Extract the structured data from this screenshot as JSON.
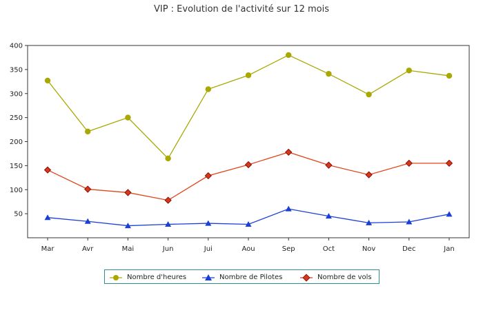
{
  "chart_data": {
    "type": "line",
    "title": "VIP : Evolution de l'activité sur 12 mois",
    "categories": [
      "Mar",
      "Avr",
      "Mai",
      "Jun",
      "Jui",
      "Aou",
      "Sep",
      "Oct",
      "Nov",
      "Dec",
      "Jan"
    ],
    "ylim": [
      0,
      400
    ],
    "yticks": [
      50,
      100,
      150,
      200,
      250,
      300,
      350,
      400
    ],
    "grid": true,
    "legend_position": "bottom",
    "series": [
      {
        "name": "Nombre d'heures",
        "color": "#a8a800",
        "marker": "diamond-circle",
        "values": [
          327,
          221,
          250,
          165,
          309,
          338,
          380,
          341,
          298,
          348,
          337
        ]
      },
      {
        "name": "Nombre de Pilotes",
        "color": "#1a3fd6",
        "marker": "triangle",
        "values": [
          42,
          34,
          25,
          28,
          30,
          28,
          60,
          45,
          31,
          33,
          49
        ]
      },
      {
        "name": "Nombre de vols",
        "color": "#e0451a",
        "marker": "diamond-red",
        "values": [
          141,
          101,
          94,
          78,
          129,
          152,
          178,
          151,
          131,
          155,
          155
        ]
      }
    ]
  }
}
